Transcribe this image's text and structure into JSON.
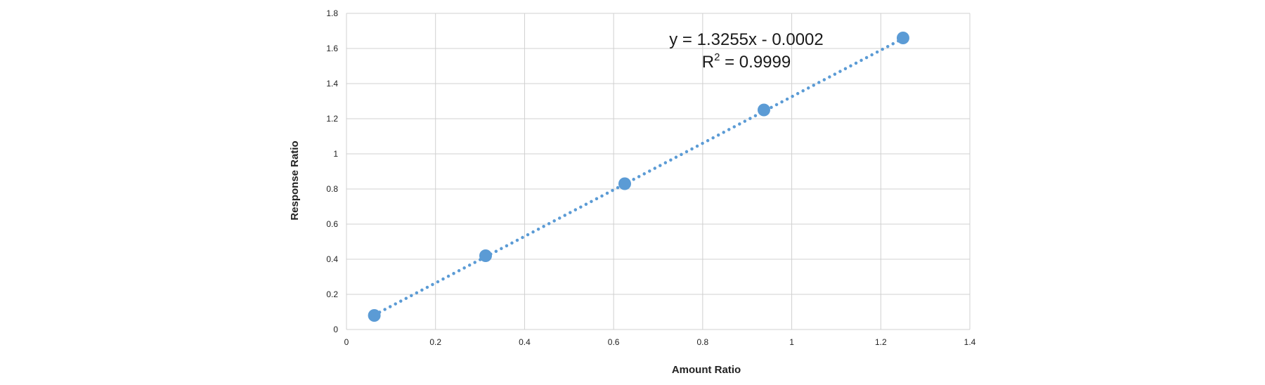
{
  "chart_data": {
    "type": "scatter",
    "xlabel": "Amount Ratio",
    "ylabel": "Response Ratio",
    "xlim": [
      0,
      1.4
    ],
    "ylim": [
      0,
      1.8
    ],
    "x_ticks": [
      "0",
      "0.2",
      "0.4",
      "0.6",
      "0.8",
      "1",
      "1.2",
      "1.4"
    ],
    "y_ticks": [
      "0",
      "0.2",
      "0.4",
      "0.6",
      "0.8",
      "1",
      "1.2",
      "1.4",
      "1.6",
      "1.8"
    ],
    "grid": true,
    "series": [
      {
        "x": [
          0.0625,
          0.3125,
          0.625,
          0.9375,
          1.25
        ],
        "y": [
          0.08,
          0.42,
          0.83,
          1.25,
          1.66
        ],
        "color": "#5b9bd5"
      }
    ],
    "trendline": {
      "type": "linear",
      "slope": 1.3255,
      "intercept": -0.0002,
      "style": "dotted",
      "color": "#5b9bd5",
      "equation": "y = 1.3255x - 0.0002",
      "r_squared_label": "R",
      "r_squared_sup": "2",
      "r_squared_value": " = 0.9999"
    }
  }
}
